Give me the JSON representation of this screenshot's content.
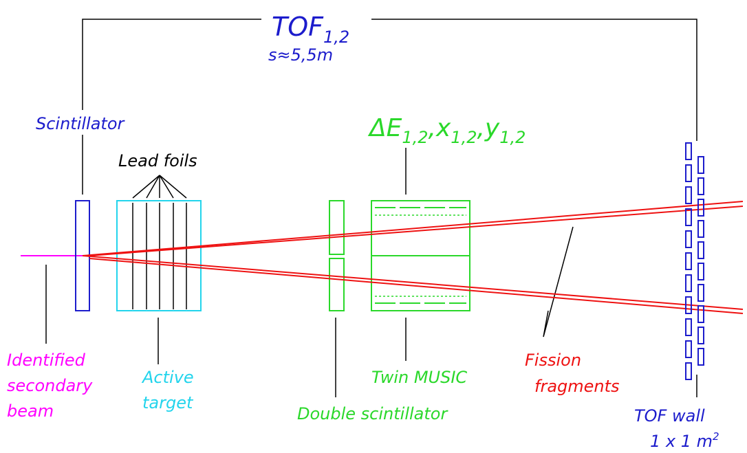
{
  "tof": {
    "main": "TOF",
    "sub": "1,2",
    "distance": "s≈5,5m"
  },
  "scintillator": "Scintillator",
  "lead_foils": "Lead foils",
  "music_signals": [
    {
      "text": "ΔE",
      "sub": "1,2"
    },
    {
      "text": ",x",
      "sub": "1,2"
    },
    {
      "text": ",y",
      "sub": "1,2"
    }
  ],
  "beam": [
    "Identified",
    "secondary",
    "beam"
  ],
  "active_target": [
    "Active",
    "target"
  ],
  "double_scintillator": "Double scintillator",
  "twin_music": "Twin MUSIC",
  "fission_fragments": [
    "Fission",
    "fragments"
  ],
  "tof_wall": {
    "name": "TOF wall",
    "size": "1 x 1 m",
    "size_sup": "2"
  }
}
